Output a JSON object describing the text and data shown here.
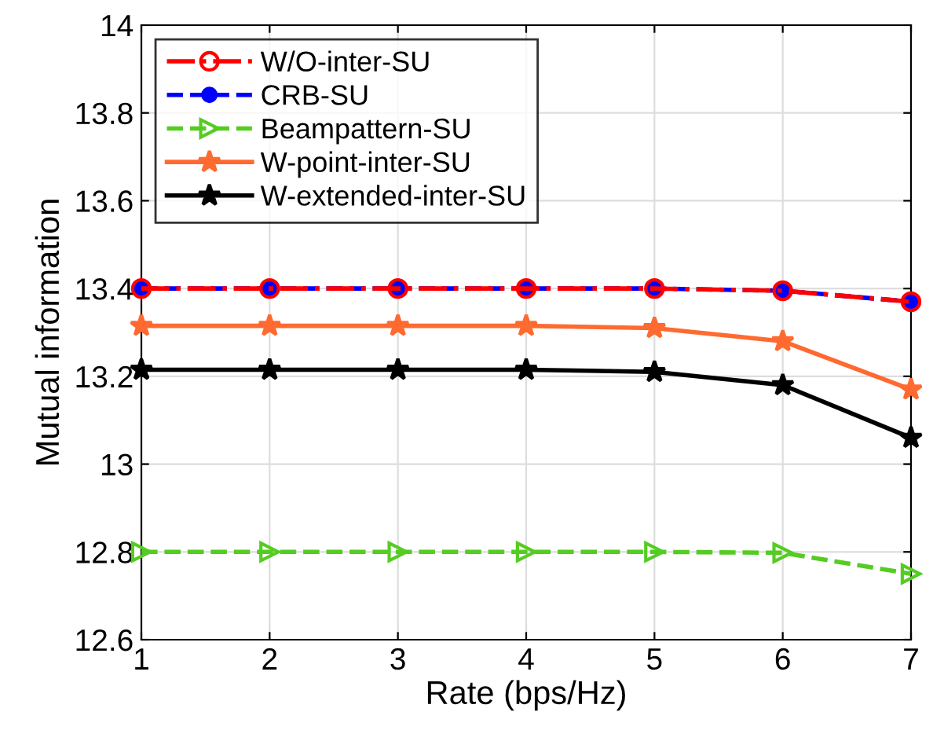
{
  "chart_data": {
    "type": "line",
    "xlabel": "Rate (bps/Hz)",
    "ylabel": "Mutual information",
    "x": [
      1,
      2,
      3,
      4,
      5,
      6,
      7
    ],
    "series": [
      {
        "name": "W/O-inter-SU",
        "color": "#ff0000",
        "marker": "circle",
        "line_style": "dashdot",
        "values": [
          13.4,
          13.4,
          13.4,
          13.4,
          13.4,
          13.395,
          13.37
        ]
      },
      {
        "name": "CRB-SU",
        "color": "#0000ff",
        "marker": "circle",
        "line_style": "dashed",
        "values": [
          13.4,
          13.4,
          13.4,
          13.4,
          13.4,
          13.395,
          13.37
        ]
      },
      {
        "name": "Beampattern-SU",
        "color": "#55cc22",
        "marker": "triangle",
        "line_style": "dashed",
        "values": [
          12.8,
          12.8,
          12.8,
          12.8,
          12.8,
          12.798,
          12.75
        ]
      },
      {
        "name": "W-point-inter-SU",
        "color": "#ff6a30",
        "marker": "star",
        "line_style": "solid",
        "values": [
          13.315,
          13.315,
          13.315,
          13.315,
          13.31,
          13.28,
          13.17
        ]
      },
      {
        "name": "W-extended-inter-SU",
        "color": "#000000",
        "marker": "star",
        "line_style": "solid",
        "values": [
          13.215,
          13.215,
          13.215,
          13.215,
          13.21,
          13.18,
          13.06
        ]
      }
    ],
    "xlim": [
      1,
      7
    ],
    "xticks": [
      1,
      2,
      3,
      4,
      5,
      6,
      7
    ],
    "ylim": [
      12.6,
      14
    ],
    "yticks": [
      12.6,
      12.8,
      13,
      13.2,
      13.4,
      13.6,
      13.8,
      14
    ],
    "grid": true,
    "legend": "top left"
  }
}
